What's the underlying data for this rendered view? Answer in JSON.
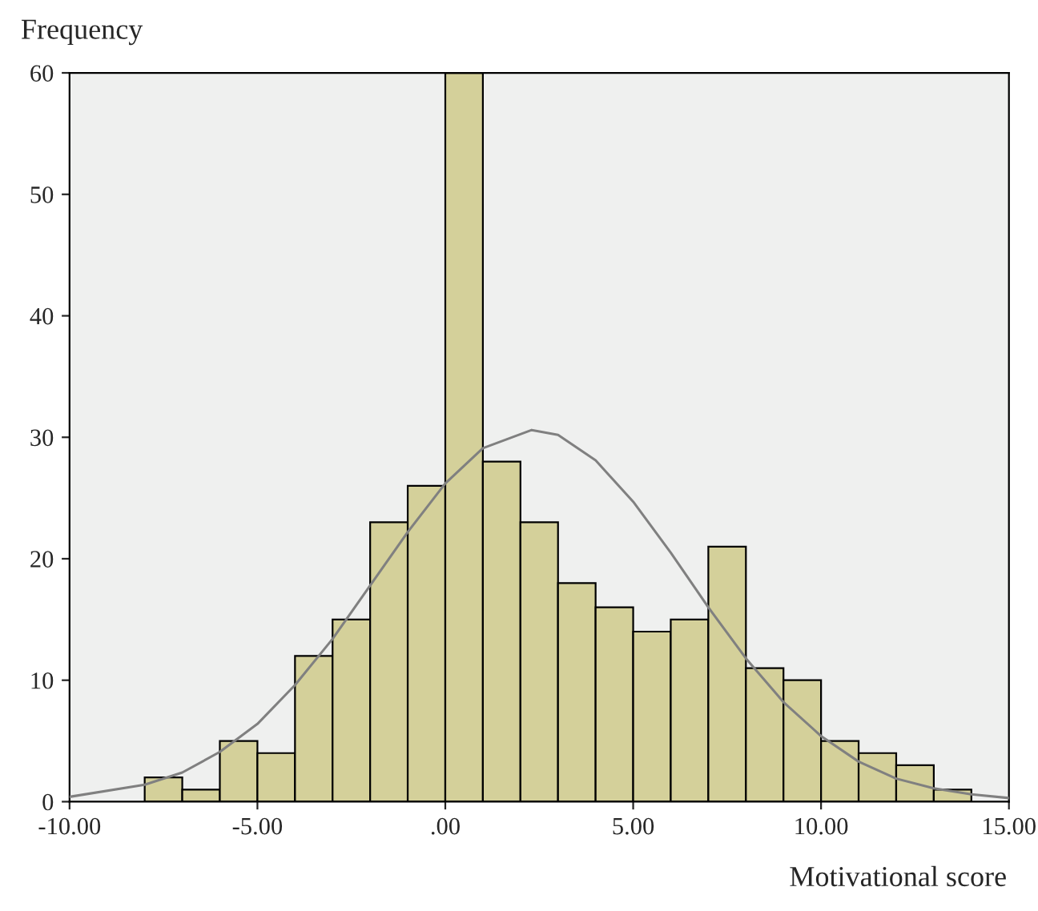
{
  "chart_data": {
    "type": "histogram",
    "xlabel": "Motivational score",
    "ylabel": "Frequency",
    "bins": [
      -8,
      -7,
      -6,
      -5,
      -4,
      -3,
      -2,
      -1,
      0,
      1,
      2,
      3,
      4,
      5,
      6,
      7,
      8,
      9,
      10,
      11,
      12,
      13,
      14
    ],
    "values": [
      2,
      1,
      5,
      4,
      12,
      15,
      23,
      26,
      60,
      28,
      23,
      18,
      16,
      14,
      15,
      21,
      11,
      10,
      5,
      4,
      3,
      1
    ],
    "color": "#d4d09a",
    "series": [
      {
        "type": "line",
        "color": "#808080",
        "x": [
          -10,
          -8,
          -7,
          -6,
          -5,
          -4,
          -3,
          -2,
          -1,
          0,
          1,
          2.3,
          3,
          4,
          5,
          6,
          7,
          8,
          9,
          10,
          11,
          12,
          13,
          14,
          15
        ],
        "values": [
          0.4,
          1.4,
          2.4,
          4.1,
          6.4,
          9.6,
          13.4,
          17.8,
          22.2,
          26.2,
          29.1,
          30.6,
          30.2,
          28.1,
          24.7,
          20.5,
          16.0,
          11.8,
          8.2,
          5.4,
          3.3,
          1.9,
          1.1,
          0.6,
          0.3
        ]
      }
    ],
    "xlim": [
      -10,
      15
    ],
    "xticks": [
      {
        "value": -10,
        "label": "-10.00"
      },
      {
        "value": -5,
        "label": "-5.00"
      },
      {
        "value": 0,
        "label": ".00"
      },
      {
        "value": 5,
        "label": "5.00"
      },
      {
        "value": 10,
        "label": "10.00"
      },
      {
        "value": 15,
        "label": "15.00"
      }
    ],
    "ylim": [
      0,
      60
    ],
    "yticks": [
      0,
      10,
      20,
      30,
      40,
      50,
      60
    ],
    "grid": false,
    "legend": false
  }
}
